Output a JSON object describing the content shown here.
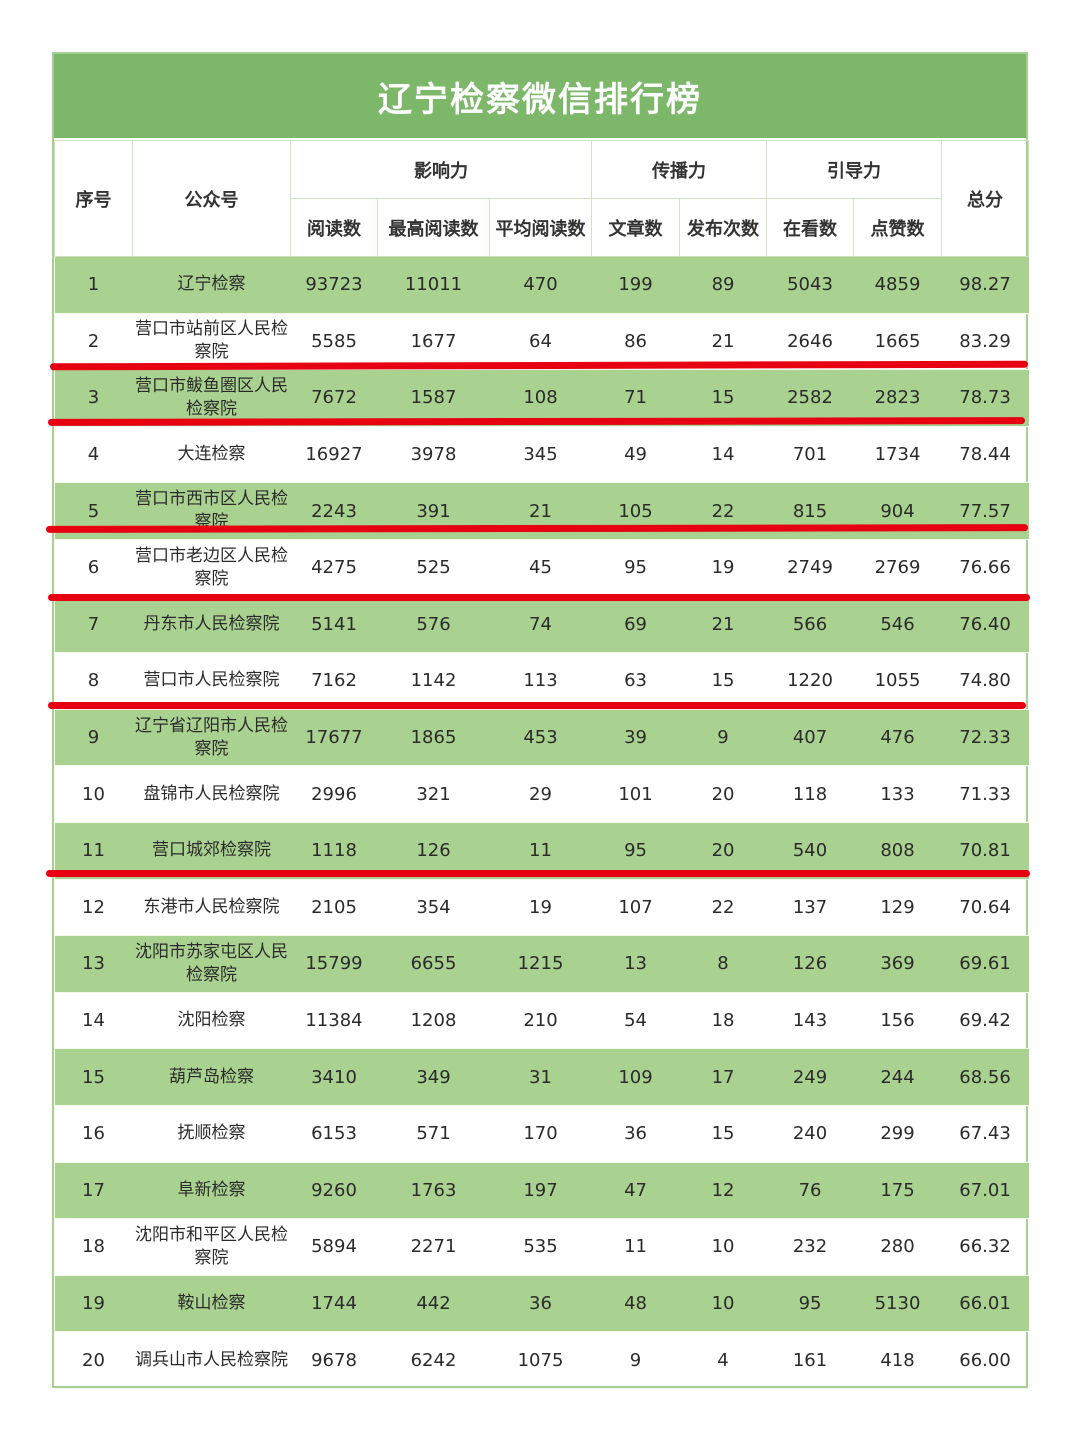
{
  "title": "辽宁检察微信排行榜",
  "headers": {
    "rank": "序号",
    "account": "公众号",
    "influence": "影响力",
    "spread": "传播力",
    "guidance": "引导力",
    "total": "总分",
    "reads": "阅读数",
    "max_reads": "最高阅读数",
    "avg_reads": "平均阅读数",
    "articles": "文章数",
    "posts": "发布次数",
    "watching": "在看数",
    "likes": "点赞数"
  },
  "colors": {
    "title_bg": "#7db86a",
    "row_alt": "#a9d190",
    "highlight_line": "#e60012"
  },
  "rows": [
    [
      "1",
      "辽宁检察",
      "93723",
      "11011",
      "470",
      "199",
      "89",
      "5043",
      "4859",
      "98.27"
    ],
    [
      "2",
      "营口市站前区人民检察院",
      "5585",
      "1677",
      "64",
      "86",
      "21",
      "2646",
      "1665",
      "83.29"
    ],
    [
      "3",
      "营口市鲅鱼圈区人民检察院",
      "7672",
      "1587",
      "108",
      "71",
      "15",
      "2582",
      "2823",
      "78.73"
    ],
    [
      "4",
      "大连检察",
      "16927",
      "3978",
      "345",
      "49",
      "14",
      "701",
      "1734",
      "78.44"
    ],
    [
      "5",
      "营口市西市区人民检察院",
      "2243",
      "391",
      "21",
      "105",
      "22",
      "815",
      "904",
      "77.57"
    ],
    [
      "6",
      "营口市老边区人民检察院",
      "4275",
      "525",
      "45",
      "95",
      "19",
      "2749",
      "2769",
      "76.66"
    ],
    [
      "7",
      "丹东市人民检察院",
      "5141",
      "576",
      "74",
      "69",
      "21",
      "566",
      "546",
      "76.40"
    ],
    [
      "8",
      "营口市人民检察院",
      "7162",
      "1142",
      "113",
      "63",
      "15",
      "1220",
      "1055",
      "74.80"
    ],
    [
      "9",
      "辽宁省辽阳市人民检察院",
      "17677",
      "1865",
      "453",
      "39",
      "9",
      "407",
      "476",
      "72.33"
    ],
    [
      "10",
      "盘锦市人民检察院",
      "2996",
      "321",
      "29",
      "101",
      "20",
      "118",
      "133",
      "71.33"
    ],
    [
      "11",
      "营口城郊检察院",
      "1118",
      "126",
      "11",
      "95",
      "20",
      "540",
      "808",
      "70.81"
    ],
    [
      "12",
      "东港市人民检察院",
      "2105",
      "354",
      "19",
      "107",
      "22",
      "137",
      "129",
      "70.64"
    ],
    [
      "13",
      "沈阳市苏家屯区人民检察院",
      "15799",
      "6655",
      "1215",
      "13",
      "8",
      "126",
      "369",
      "69.61"
    ],
    [
      "14",
      "沈阳检察",
      "11384",
      "1208",
      "210",
      "54",
      "18",
      "143",
      "156",
      "69.42"
    ],
    [
      "15",
      "葫芦岛检察",
      "3410",
      "349",
      "31",
      "109",
      "17",
      "249",
      "244",
      "68.56"
    ],
    [
      "16",
      "抚顺检察",
      "6153",
      "571",
      "170",
      "36",
      "15",
      "240",
      "299",
      "67.43"
    ],
    [
      "17",
      "阜新检察",
      "9260",
      "1763",
      "197",
      "47",
      "12",
      "76",
      "175",
      "67.01"
    ],
    [
      "18",
      "沈阳市和平区人民检察院",
      "5894",
      "2271",
      "535",
      "11",
      "10",
      "232",
      "280",
      "66.32"
    ],
    [
      "19",
      "鞍山检察",
      "1744",
      "442",
      "36",
      "48",
      "10",
      "95",
      "5130",
      "66.01"
    ],
    [
      "20",
      "调兵山市人民检察院",
      "9678",
      "6242",
      "1075",
      "9",
      "4",
      "161",
      "418",
      "66.00"
    ]
  ]
}
